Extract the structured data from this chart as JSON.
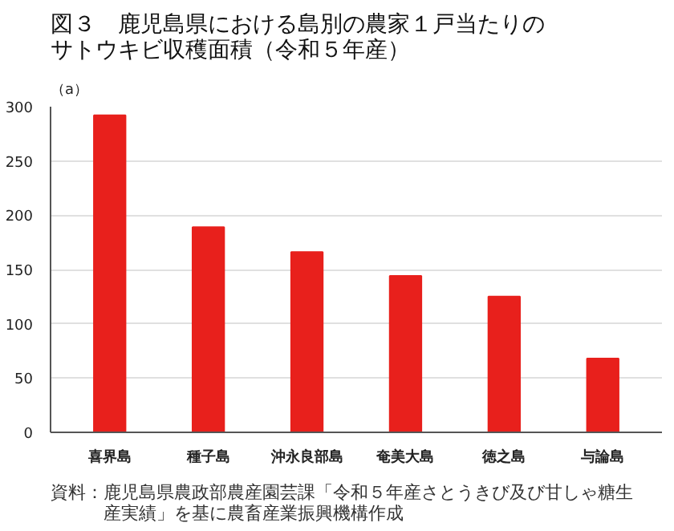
{
  "chart_data": {
    "type": "bar",
    "title": "図３　鹿児島県における島別の農家１戸当たりのサトウキビ収穫面積（令和５年産）",
    "ylabel": "（a）",
    "categories": [
      "喜界島",
      "種子島",
      "沖永良部島",
      "奄美大島",
      "徳之島",
      "与論島"
    ],
    "values": [
      292,
      189,
      166,
      144,
      125,
      68
    ],
    "color": "#e8201c",
    "ylim": [
      0,
      300
    ],
    "yticks": [
      0,
      50,
      100,
      150,
      200,
      250,
      300
    ],
    "grid": "y",
    "annotations": [
      "資料：鹿児島県農政部農産園芸課「令和５年産さとうきび及び甘しゃ糖生産実績」を基に農畜産業振興機構作成"
    ]
  }
}
